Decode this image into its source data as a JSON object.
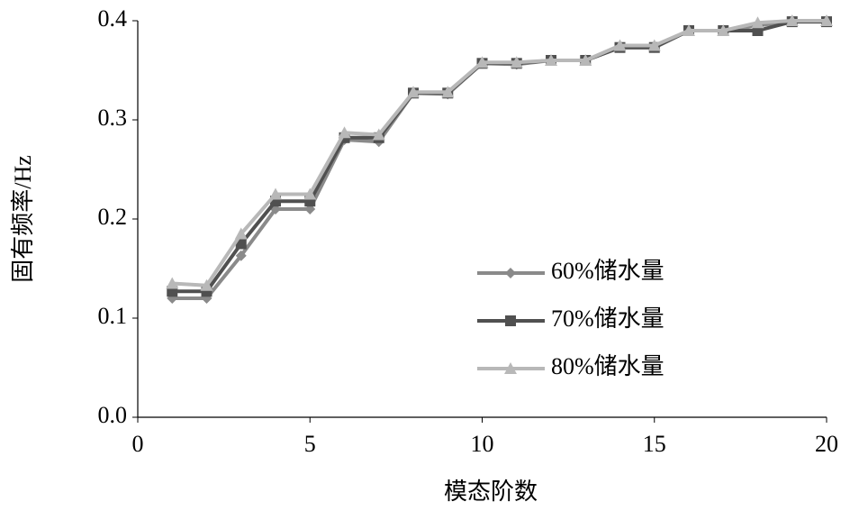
{
  "chart_data": {
    "type": "line",
    "x": [
      1,
      2,
      3,
      4,
      5,
      6,
      7,
      8,
      9,
      10,
      11,
      12,
      13,
      14,
      15,
      16,
      17,
      18,
      19,
      20
    ],
    "series": [
      {
        "name": "60%储水量",
        "color": "#8a8a8a",
        "marker": "diamond",
        "values": [
          0.12,
          0.12,
          0.163,
          0.21,
          0.21,
          0.28,
          0.278,
          0.327,
          0.326,
          0.357,
          0.356,
          0.36,
          0.36,
          0.373,
          0.373,
          0.39,
          0.39,
          0.395,
          0.4,
          0.4
        ]
      },
      {
        "name": "70%储水量",
        "color": "#505050",
        "marker": "square",
        "values": [
          0.127,
          0.127,
          0.175,
          0.218,
          0.218,
          0.282,
          0.282,
          0.327,
          0.327,
          0.357,
          0.357,
          0.36,
          0.36,
          0.373,
          0.373,
          0.39,
          0.39,
          0.39,
          0.399,
          0.399
        ]
      },
      {
        "name": "80%储水量",
        "color": "#b8b8b8",
        "marker": "triangle",
        "values": [
          0.135,
          0.133,
          0.185,
          0.225,
          0.225,
          0.287,
          0.285,
          0.328,
          0.328,
          0.358,
          0.358,
          0.36,
          0.36,
          0.375,
          0.375,
          0.39,
          0.39,
          0.398,
          0.4,
          0.4
        ]
      }
    ],
    "xlabel": "模态阶数",
    "ylabel": "固有频率/Hz",
    "xlim": [
      0,
      20
    ],
    "xticks": [
      0,
      5,
      10,
      15,
      20
    ],
    "ylim": [
      0,
      0.4
    ],
    "yticks": [
      {
        "value": 0,
        "label": "0.0"
      },
      0.1,
      0.2,
      0.3,
      0.4
    ]
  }
}
